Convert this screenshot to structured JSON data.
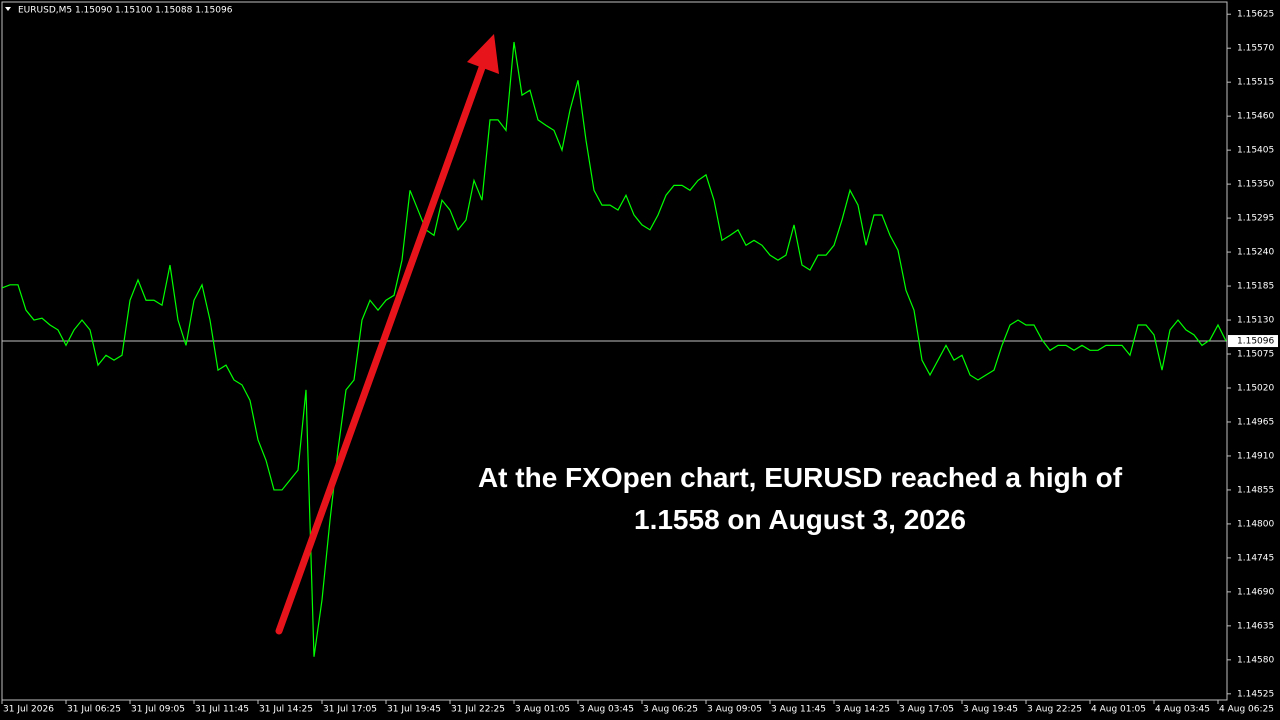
{
  "chart_data": {
    "type": "line",
    "header": "EURUSD,M5  1.15090 1.15100 1.15088 1.15096",
    "annotation": "At the FXOpen chart, EURUSD reached a high of 1.1558 on August 3, 2026",
    "color": "#00ff00",
    "current_price": 1.15096,
    "categories": [
      "31 Jul 2026",
      null,
      null,
      null,
      null,
      null,
      null,
      null,
      "31 Jul 06:25",
      null,
      null,
      null,
      null,
      null,
      null,
      null,
      "31 Jul 09:05",
      null,
      null,
      null,
      null,
      null,
      null,
      null,
      "31 Jul 11:45",
      null,
      null,
      null,
      null,
      null,
      null,
      null,
      "31 Jul 14:25",
      null,
      null,
      null,
      null,
      null,
      null,
      null,
      "31 Jul 17:05",
      null,
      null,
      null,
      null,
      null,
      null,
      null,
      "31 Jul 19:45",
      null,
      null,
      null,
      null,
      null,
      null,
      null,
      "31 Jul 22:25",
      null,
      null,
      null,
      null,
      null,
      null,
      null,
      "3 Aug 01:05",
      null,
      null,
      null,
      null,
      null,
      null,
      null,
      "3 Aug 03:45",
      null,
      null,
      null,
      null,
      null,
      null,
      null,
      "3 Aug 06:25",
      null,
      null,
      null,
      null,
      null,
      null,
      null,
      "3 Aug 09:05",
      null,
      null,
      null,
      null,
      null,
      null,
      null,
      "3 Aug 11:45",
      null,
      null,
      null,
      null,
      null,
      null,
      null,
      "3 Aug 14:25",
      null,
      null,
      null,
      null,
      null,
      null,
      null,
      "3 Aug 17:05",
      null,
      null,
      null,
      null,
      null,
      null,
      null,
      "3 Aug 19:45",
      null,
      null,
      null,
      null,
      null,
      null,
      null,
      "3 Aug 22:25",
      null,
      null,
      null,
      null,
      null,
      null,
      null,
      "4 Aug 01:05",
      null,
      null,
      null,
      null,
      null,
      null,
      null,
      "4 Aug 03:45",
      null,
      null,
      null,
      null,
      null,
      null,
      null,
      "4 Aug 06:25",
      null
    ],
    "values": [
      1.15182,
      1.15187,
      1.15187,
      1.15146,
      1.1513,
      1.15133,
      1.15122,
      1.15114,
      1.15089,
      1.15114,
      1.1513,
      1.15114,
      1.15057,
      1.15073,
      1.15065,
      1.15073,
      1.15162,
      1.15195,
      1.15162,
      1.15162,
      1.15154,
      1.15219,
      1.1513,
      1.15089,
      1.15162,
      1.15187,
      1.1513,
      1.15049,
      1.15057,
      1.15033,
      1.15025,
      1.15,
      1.14936,
      1.14903,
      1.14855,
      1.14855,
      1.14871,
      1.14887,
      1.15017,
      1.14585,
      1.14677,
      1.14806,
      1.1492,
      1.15017,
      1.15033,
      1.1513,
      1.15162,
      1.15146,
      1.15162,
      1.1517,
      1.15227,
      1.1534,
      1.15308,
      1.15276,
      1.15267,
      1.15324,
      1.15308,
      1.15276,
      1.15292,
      1.15356,
      1.15324,
      1.15454,
      1.15454,
      1.15437,
      1.1558,
      1.15494,
      1.15502,
      1.15454,
      1.15445,
      1.15437,
      1.15405,
      1.1547,
      1.15518,
      1.15421,
      1.1534,
      1.15316,
      1.15316,
      1.15308,
      1.15332,
      1.153,
      1.15284,
      1.15276,
      1.153,
      1.15332,
      1.15348,
      1.15348,
      1.1534,
      1.15356,
      1.15365,
      1.15324,
      1.15259,
      1.15267,
      1.15276,
      1.15251,
      1.15259,
      1.15251,
      1.15235,
      1.15227,
      1.15235,
      1.15284,
      1.15219,
      1.15211,
      1.15235,
      1.15235,
      1.15251,
      1.15292,
      1.1534,
      1.15316,
      1.15251,
      1.153,
      1.153,
      1.15267,
      1.15243,
      1.15178,
      1.15146,
      1.15065,
      1.15041,
      1.15065,
      1.15089,
      1.15065,
      1.15073,
      1.15041,
      1.15033,
      1.15041,
      1.15049,
      1.15089,
      1.15122,
      1.1513,
      1.15122,
      1.15122,
      1.15098,
      1.15081,
      1.15089,
      1.15089,
      1.15081,
      1.15089,
      1.15081,
      1.15081,
      1.15089,
      1.15089,
      1.15089,
      1.15073,
      1.15122,
      1.15122,
      1.15106,
      1.15049,
      1.15114,
      1.1513,
      1.15114,
      1.15106,
      1.15089,
      1.15098,
      1.15122,
      1.15096
    ],
    "ylim": [
      1.14515,
      1.15648
    ],
    "yticks": [
      1.15625,
      {
        "value": 1.1557,
        "label": "1.15570"
      },
      1.15515,
      {
        "value": 1.1546,
        "label": "1.15460"
      },
      1.15405,
      {
        "value": 1.1535,
        "label": "1.15350"
      },
      1.15295,
      {
        "value": 1.1524,
        "label": "1.15240"
      },
      1.15185,
      {
        "value": 1.1513,
        "label": "1.15130"
      },
      1.15075,
      {
        "value": 1.1502,
        "label": "1.15020"
      },
      1.14965,
      {
        "value": 1.1491,
        "label": "1.14910"
      },
      1.14855,
      {
        "value": 1.148,
        "label": "1.14800"
      },
      1.14745,
      {
        "value": 1.1469,
        "label": "1.14690"
      },
      1.14635,
      {
        "value": 1.1458,
        "label": "1.14580"
      },
      1.14525
    ]
  }
}
